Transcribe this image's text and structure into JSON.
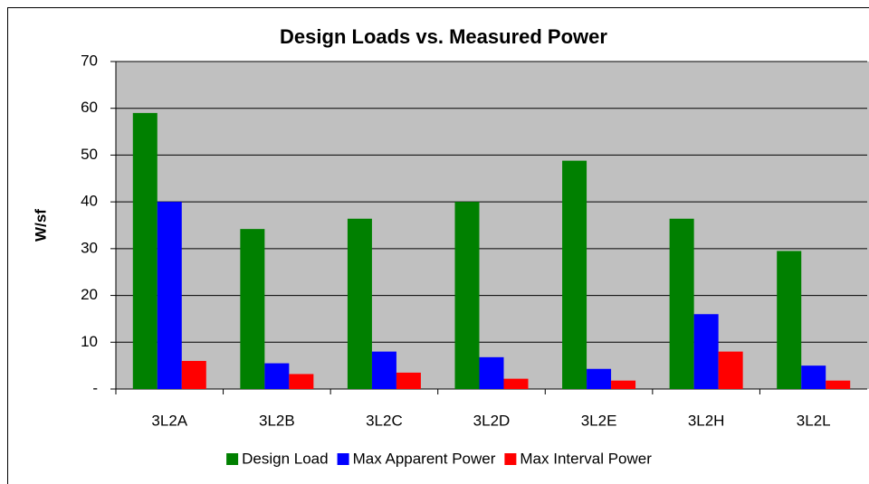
{
  "chart_data": {
    "type": "bar",
    "title": "Design Loads vs. Measured Power",
    "y_label": "W/sf",
    "categories": [
      "3L2A",
      "3L2B",
      "3L2C",
      "3L2D",
      "3L2E",
      "3L2H",
      "3L2L"
    ],
    "series": [
      {
        "name": "Design Load",
        "color": "#008000",
        "values": [
          59,
          34.2,
          36.4,
          40,
          48.8,
          36.4,
          29.5
        ]
      },
      {
        "name": "Max Apparent Power",
        "color": "#0000ff",
        "values": [
          40,
          5.5,
          8,
          6.8,
          4.3,
          16,
          5
        ]
      },
      {
        "name": "Max Interval Power",
        "color": "#ff0000",
        "values": [
          6,
          3.2,
          3.5,
          2.2,
          1.8,
          8,
          1.8
        ]
      }
    ],
    "ylim": [
      0,
      70
    ],
    "yticks": [
      {
        "value": 0,
        "label": "-"
      },
      10,
      20,
      30,
      40,
      50,
      60,
      70
    ],
    "grid": true,
    "legend": "bottom"
  }
}
